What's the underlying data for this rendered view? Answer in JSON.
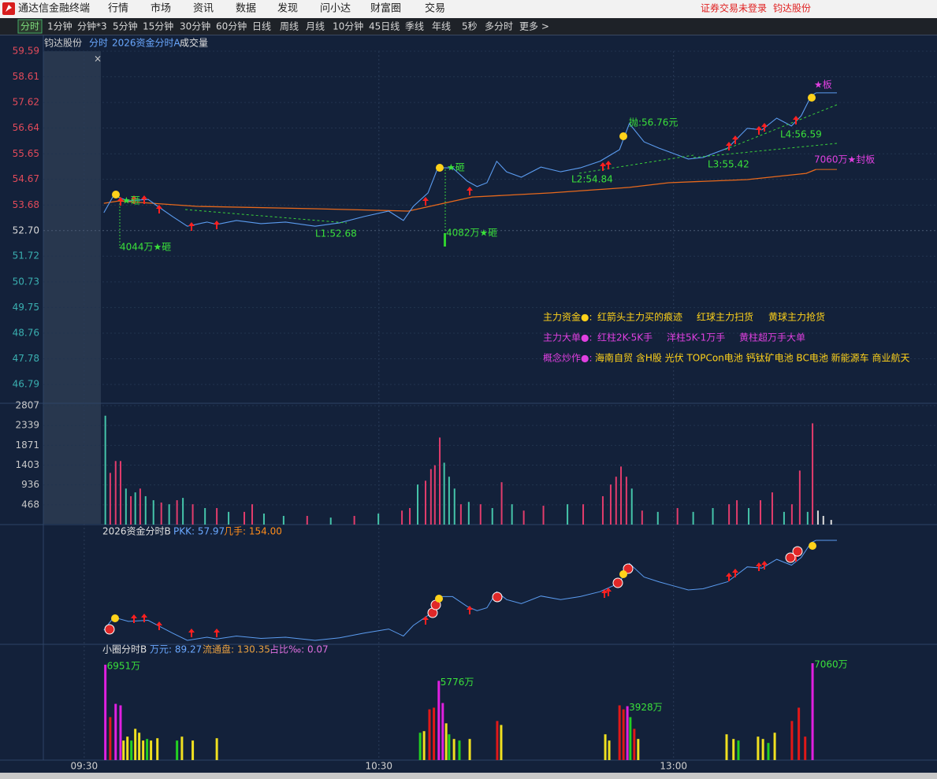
{
  "menu": {
    "app": "通达信金融终端",
    "items": [
      "行情",
      "市场",
      "资讯",
      "数据",
      "发现",
      "问小达",
      "财富圈",
      "交易"
    ],
    "status": "证券交易未登录",
    "stock": "钧达股份"
  },
  "tabs": {
    "items": [
      "分时",
      "1分钟",
      "分钟*3",
      "5分钟",
      "15分钟",
      "30分钟",
      "60分钟",
      "日线",
      "周线",
      "月线",
      "10分钟",
      "45日线",
      "季线",
      "年线",
      "5秒",
      "多分时",
      "更多 >"
    ],
    "active": 0
  },
  "header": {
    "stock": "钧达股份",
    "items": [
      "分时",
      "2026资金分时A",
      "成交量"
    ]
  },
  "time_axis": {
    "xlim": [
      -8,
      173
    ],
    "xticks": [
      {
        "value": 0,
        "label": "09:30"
      },
      {
        "value": 60,
        "label": "10:30"
      },
      {
        "value": 120,
        "label": "13:00"
      }
    ]
  },
  "price_panel": {
    "ylim": [
      46.13,
      59.59
    ],
    "prev_close": 52.7,
    "yticks": [
      59.59,
      58.61,
      57.62,
      56.64,
      55.65,
      54.67,
      53.68,
      {
        "value": 52.7,
        "label": "52.70"
      },
      51.72,
      50.73,
      49.75,
      48.76,
      47.78,
      46.79
    ],
    "price": {
      "color": "#5b9cf0",
      "x": [
        4,
        6,
        9,
        13,
        15,
        18,
        21,
        25,
        27,
        31,
        36,
        41,
        47,
        52,
        57,
        62,
        65,
        67,
        70,
        72,
        75,
        78,
        80,
        82,
        84,
        86,
        89,
        93,
        97,
        101,
        105,
        109,
        111,
        114,
        117,
        120,
        123,
        126,
        131,
        135,
        138,
        141,
        144,
        146,
        148,
        149
      ],
      "values": [
        53.39,
        54.05,
        53.84,
        53.9,
        53.63,
        53.24,
        52.87,
        53.03,
        52.94,
        53.09,
        52.97,
        53.03,
        52.87,
        53.0,
        53.24,
        53.45,
        53.09,
        53.63,
        54.15,
        55.11,
        55.11,
        54.6,
        54.39,
        54.54,
        55.36,
        54.96,
        54.75,
        55.14,
        54.96,
        55.11,
        55.36,
        55.81,
        56.81,
        56.11,
        55.87,
        55.66,
        55.45,
        55.51,
        55.87,
        56.63,
        56.57,
        57.02,
        56.72,
        57.11,
        57.87,
        57.99
      ]
    },
    "average": {
      "color": "#e8691c",
      "x": [
        4,
        7,
        23,
        47,
        66,
        79,
        95,
        111,
        119,
        135,
        147,
        149
      ],
      "values": [
        53.75,
        53.84,
        53.63,
        53.54,
        53.45,
        53.99,
        54.15,
        54.36,
        54.54,
        54.66,
        54.9,
        55.05
      ]
    },
    "annotations": [
      "★砸",
      "4044万★砸",
      "★砸",
      "4082万★砸",
      "L1:52.68",
      "L2:54.84",
      "L3:55.42",
      "L4:56.59",
      "抛:56.76元",
      "★板",
      "7060万★封板"
    ]
  },
  "legend": [
    {
      "label": "主力资金●:",
      "items": [
        "红箭头主力买的痕迹",
        "红球主力扫货",
        "黄球主力抢货"
      ]
    },
    {
      "label": "主力大单●:",
      "items": [
        "红柱2K-5K手",
        "洋柱5K-1万手",
        "黄柱超万手大单"
      ]
    },
    {
      "label": "概念炒作●:",
      "items": [
        "海南自贸 含H股 光伏 TOPCon电池 钙钛矿电池 BC电池 新能源车 商业航天"
      ]
    }
  ],
  "volume_panel": {
    "ylim": [
      0,
      2807
    ],
    "yticks": [
      468,
      936,
      1403,
      1871,
      2339,
      2807
    ],
    "palette": {
      "up": "#e23c6c",
      "down": "#45c4aa",
      "flat": "#dddddd"
    },
    "x": [
      4.3,
      5.3,
      6.4,
      7.4,
      8.5,
      9.5,
      10.4,
      11.4,
      12.5,
      14.1,
      15.7,
      17.3,
      18.9,
      20.1,
      22.1,
      24.6,
      27.0,
      29.4,
      32.6,
      34.2,
      36.6,
      40.6,
      45.4,
      50.2,
      55.0,
      59.9,
      64.7,
      66.3,
      67.9,
      69.5,
      70.6,
      71.4,
      72.4,
      73.3,
      74.3,
      75.4,
      76.7,
      78.3,
      80.7,
      83.1,
      85.0,
      87.1,
      89.5,
      93.5,
      98.4,
      101.6,
      105.6,
      107.2,
      108.3,
      109.3,
      110.4,
      111.5,
      113.6,
      116.8,
      120.8,
      124.0,
      128.0,
      131.3,
      132.9,
      135.3,
      137.7,
      140.1,
      142.5,
      144.1,
      145.7,
      147.3,
      148.3,
      149.4,
      150.5,
      152.1
    ],
    "values": [
      2570,
      1220,
      1500,
      1500,
      850,
      670,
      760,
      850,
      670,
      575,
      520,
      480,
      575,
      630,
      480,
      390,
      390,
      300,
      300,
      480,
      260,
      205,
      205,
      165,
      205,
      260,
      330,
      390,
      945,
      1035,
      1310,
      1400,
      2055,
      1460,
      1130,
      850,
      480,
      535,
      480,
      390,
      1000,
      480,
      330,
      445,
      480,
      480,
      670,
      945,
      1130,
      1370,
      1130,
      850,
      330,
      300,
      390,
      300,
      390,
      480,
      575,
      390,
      575,
      760,
      300,
      480,
      1275,
      300,
      2390,
      330,
      205,
      110
    ],
    "dir": [
      "down",
      "up",
      "up",
      "up",
      "down",
      "up",
      "down",
      "up",
      "down",
      "down",
      "up",
      "down",
      "up",
      "down",
      "up",
      "down",
      "up",
      "down",
      "up",
      "up",
      "down",
      "down",
      "up",
      "down",
      "up",
      "down",
      "up",
      "up",
      "down",
      "up",
      "up",
      "up",
      "up",
      "down",
      "down",
      "down",
      "up",
      "down",
      "up",
      "down",
      "up",
      "down",
      "up",
      "up",
      "down",
      "up",
      "up",
      "up",
      "up",
      "up",
      "up",
      "down",
      "up",
      "down",
      "up",
      "down",
      "down",
      "up",
      "up",
      "down",
      "up",
      "up",
      "down",
      "up",
      "up",
      "down",
      "up",
      "flat",
      "flat",
      "flat"
    ]
  },
  "indicator_panel": {
    "name": "2026资金分时B",
    "items": [
      "PKK: 57.97",
      "几手: 154.00"
    ],
    "color": "#5b9cf0"
  },
  "circle_panel": {
    "name": "小圈分时B",
    "items": [
      "万元: 89.27",
      "流通盘: 130.35",
      "占比‰: 0.07"
    ],
    "palette": {
      "m": "#e020e0",
      "r": "#e01818",
      "y": "#f0e020",
      "g": "#22d022"
    },
    "x": [
      4.3,
      5.3,
      6.4,
      7.4,
      8.0,
      8.8,
      9.6,
      10.4,
      11.2,
      12.0,
      12.8,
      13.6,
      14.9,
      18.9,
      19.9,
      22.1,
      27.0,
      68.4,
      69.2,
      70.3,
      71.2,
      72.2,
      73.0,
      73.7,
      74.3,
      75.3,
      76.4,
      78.5,
      84.1,
      84.9,
      106.1,
      106.9,
      109.0,
      109.8,
      110.6,
      111.2,
      112.0,
      112.8,
      130.8,
      132.2,
      133.2,
      137.2,
      138.2,
      139.3,
      140.6,
      144.1,
      145.5,
      146.8,
      148.3
    ],
    "values": [
      6951,
      3134,
      4100,
      3990,
      1425,
      1710,
      1425,
      2280,
      1995,
      1425,
      1540,
      1425,
      1595,
      1425,
      1710,
      1425,
      1595,
      1995,
      2110,
      3700,
      3820,
      5776,
      4160,
      2680,
      1880,
      1540,
      1425,
      1540,
      2850,
      2560,
      1880,
      1425,
      3990,
      3700,
      3928,
      3130,
      2280,
      1540,
      1880,
      1540,
      1425,
      1710,
      1540,
      1250,
      1995,
      2850,
      3820,
      1710,
      7060
    ],
    "kind": [
      "m",
      "r",
      "m",
      "m",
      "y",
      "y",
      "g",
      "y",
      "y",
      "y",
      "g",
      "y",
      "y",
      "g",
      "y",
      "y",
      "y",
      "g",
      "y",
      "r",
      "r",
      "m",
      "m",
      "y",
      "g",
      "y",
      "g",
      "y",
      "r",
      "y",
      "y",
      "y",
      "r",
      "r",
      "m",
      "g",
      "r",
      "y",
      "y",
      "y",
      "g",
      "y",
      "y",
      "g",
      "y",
      "r",
      "r",
      "r",
      "m"
    ],
    "value_labels": [
      "6951万",
      null,
      null,
      null,
      null,
      null,
      null,
      null,
      null,
      null,
      null,
      null,
      null,
      null,
      null,
      null,
      null,
      null,
      null,
      null,
      null,
      "5776万",
      null,
      null,
      null,
      null,
      null,
      null,
      null,
      null,
      null,
      null,
      null,
      null,
      "3928万",
      null,
      null,
      null,
      null,
      null,
      null,
      null,
      null,
      null,
      null,
      null,
      null,
      null,
      "7060万"
    ]
  }
}
